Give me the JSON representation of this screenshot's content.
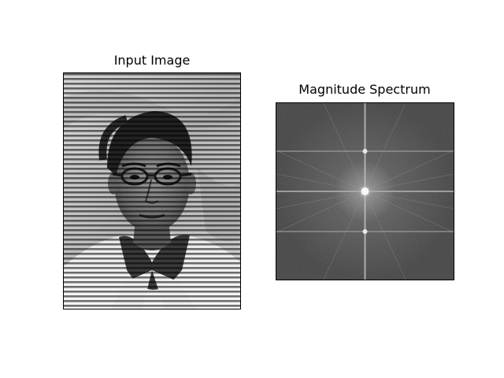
{
  "figure": {
    "panels": [
      {
        "title": "Input Image",
        "image_desc": "grayscale portrait photo with periodic horizontal line noise"
      },
      {
        "title": "Magnitude Spectrum",
        "image_desc": "log-magnitude FFT spectrum with bright center and vertical noise peaks"
      }
    ]
  },
  "colors": {
    "background": "#ffffff",
    "axes_border": "#000000"
  }
}
